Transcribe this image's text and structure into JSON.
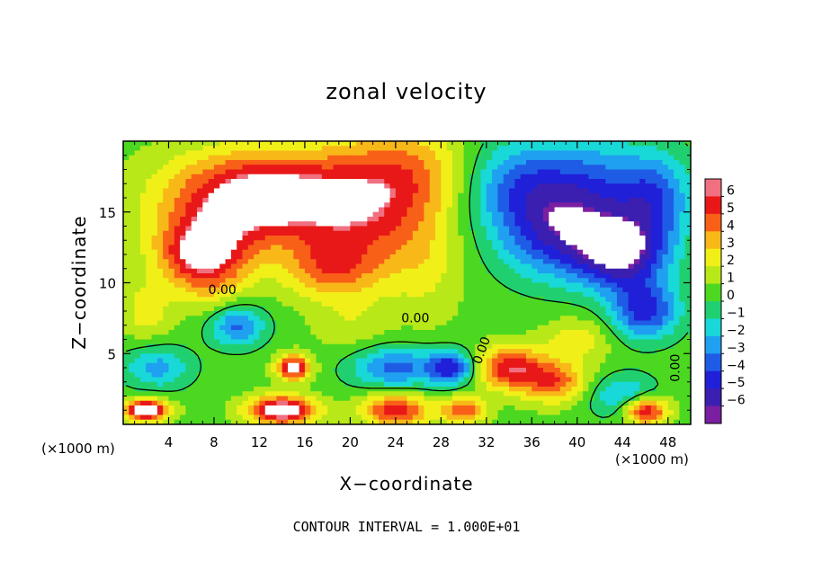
{
  "chart_data": {
    "type": "heatmap",
    "title": "zonal velocity",
    "xlabel": "X−coordinate",
    "ylabel": "Z−coordinate",
    "x_unit_left": "(×1000 m)",
    "x_unit_right": "(×1000 m)",
    "footer": "CONTOUR INTERVAL = 1.000E+01",
    "xlim": [
      0,
      50
    ],
    "ylim": [
      0,
      20
    ],
    "x_ticks": [
      4,
      8,
      12,
      16,
      20,
      24,
      28,
      32,
      36,
      40,
      44,
      48
    ],
    "x_tick_labels": [
      "4",
      "8",
      "12",
      "16",
      "20",
      "24",
      "28",
      "32",
      "36",
      "40",
      "44",
      "48"
    ],
    "y_ticks": [
      5,
      10,
      15
    ],
    "y_tick_labels": [
      "5",
      "10",
      "15"
    ],
    "colorbar": {
      "levels": [
        -6,
        -5,
        -4,
        -3,
        -2,
        -1,
        0,
        1,
        2,
        3,
        4,
        5,
        6
      ],
      "labels": [
        "6",
        "5",
        "4",
        "3",
        "2",
        "1",
        "0",
        "−1",
        "−2",
        "−3",
        "−4",
        "−5",
        "−6"
      ],
      "colors": [
        "#7a1fa2",
        "#3b1fb0",
        "#2020d8",
        "#1f5ce6",
        "#1fa0f0",
        "#18d8d8",
        "#20d070",
        "#4cd820",
        "#b8e818",
        "#f0f018",
        "#f8b818",
        "#f86018",
        "#e81818",
        "#f07080"
      ]
    },
    "contour_labels": [
      "0.00",
      "0.00",
      "0.00",
      "0.00"
    ],
    "blobs": [
      {
        "x": 12,
        "z": 16,
        "v": 7,
        "rx": 8,
        "rz": 3.2
      },
      {
        "x": 7,
        "z": 12,
        "v": 6,
        "rx": 4,
        "rz": 2.5
      },
      {
        "x": 22,
        "z": 15,
        "v": 4,
        "rx": 6,
        "rz": 5
      },
      {
        "x": 18,
        "z": 11,
        "v": 3,
        "rx": 4,
        "rz": 2
      },
      {
        "x": 26,
        "z": 18,
        "v": 2,
        "rx": 5,
        "rz": 3
      },
      {
        "x": 27,
        "z": 11,
        "v": 1,
        "rx": 3,
        "rz": 4
      },
      {
        "x": 40,
        "z": 16,
        "v": -5,
        "rx": 7,
        "rz": 4
      },
      {
        "x": 44,
        "z": 12,
        "v": -6,
        "rx": 4,
        "rz": 2.5
      },
      {
        "x": 38,
        "z": 13,
        "v": -3,
        "rx": 5,
        "rz": 3
      },
      {
        "x": 34,
        "z": 17,
        "v": -2,
        "rx": 4,
        "rz": 3
      },
      {
        "x": 46,
        "z": 8,
        "v": -5,
        "rx": 3,
        "rz": 2
      },
      {
        "x": 47,
        "z": 16,
        "v": -3,
        "rx": 3,
        "rz": 3
      },
      {
        "x": 10,
        "z": 7,
        "v": -4,
        "rx": 2.5,
        "rz": 1.5
      },
      {
        "x": 8,
        "z": 9,
        "v": 1,
        "rx": 3,
        "rz": 2
      },
      {
        "x": 3,
        "z": 4,
        "v": -3,
        "rx": 3,
        "rz": 1.5
      },
      {
        "x": 2,
        "z": 8,
        "v": 2,
        "rx": 2,
        "rz": 2
      },
      {
        "x": 15,
        "z": 4,
        "v": 6,
        "rx": 1.5,
        "rz": 0.9
      },
      {
        "x": 14,
        "z": 1,
        "v": 7,
        "rx": 3,
        "rz": 1
      },
      {
        "x": 24,
        "z": 4,
        "v": -4,
        "rx": 4,
        "rz": 1.5
      },
      {
        "x": 24,
        "z": 1,
        "v": 5,
        "rx": 3,
        "rz": 1.2
      },
      {
        "x": 29,
        "z": 4,
        "v": -5,
        "rx": 2,
        "rz": 1.2
      },
      {
        "x": 30,
        "z": 1,
        "v": 4,
        "rx": 2,
        "rz": 1
      },
      {
        "x": 34,
        "z": 4,
        "v": 5,
        "rx": 3,
        "rz": 1.5
      },
      {
        "x": 38,
        "z": 3,
        "v": 4,
        "rx": 3,
        "rz": 1.5
      },
      {
        "x": 40,
        "z": 6,
        "v": 2,
        "rx": 3,
        "rz": 1.5
      },
      {
        "x": 44,
        "z": 2,
        "v": -3,
        "rx": 3,
        "rz": 1.5
      },
      {
        "x": 46,
        "z": 1,
        "v": 6,
        "rx": 2,
        "rz": 1
      },
      {
        "x": 2,
        "z": 1,
        "v": 7,
        "rx": 2,
        "rz": 0.8
      },
      {
        "x": 20,
        "z": 7,
        "v": 1,
        "rx": 3,
        "rz": 2
      },
      {
        "x": 36,
        "z": 9,
        "v": 0,
        "rx": 4,
        "rz": 1.5
      }
    ]
  }
}
